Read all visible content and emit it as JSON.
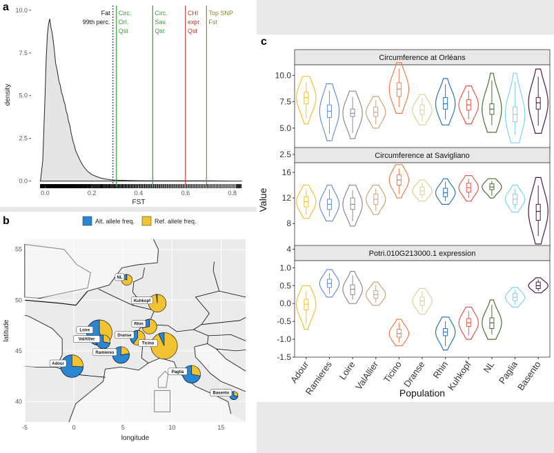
{
  "panels": {
    "a": "a",
    "b": "b",
    "c": "c"
  },
  "chart_data": [
    {
      "id": "a",
      "type": "area",
      "xlabel": "FST",
      "ylabel": "density",
      "xlim": [
        -0.06,
        0.86
      ],
      "ylim": [
        -0.3,
        10.4
      ],
      "xticks": [
        "0.0",
        "0.2",
        "0.4",
        "0.6",
        "0.8"
      ],
      "yticks": [
        "0.0",
        "2.5",
        "5.0",
        "7.5",
        "10.0"
      ],
      "x": [
        -0.02,
        -0.01,
        0.0,
        0.005,
        0.01,
        0.015,
        0.02,
        0.025,
        0.03,
        0.035,
        0.04,
        0.045,
        0.05,
        0.055,
        0.06,
        0.065,
        0.07,
        0.075,
        0.08,
        0.085,
        0.09,
        0.095,
        0.1,
        0.105,
        0.11,
        0.115,
        0.12,
        0.125,
        0.13,
        0.14,
        0.15,
        0.16,
        0.17,
        0.18,
        0.19,
        0.2,
        0.22,
        0.24,
        0.26,
        0.28,
        0.3,
        0.35,
        0.4,
        0.5,
        0.6,
        0.7,
        0.8,
        0.84
      ],
      "y": [
        0.0,
        1.2,
        5.0,
        7.2,
        8.6,
        9.2,
        9.5,
        9.0,
        8.7,
        8.2,
        7.6,
        6.9,
        6.6,
        6.2,
        5.8,
        5.6,
        5.2,
        5.0,
        4.7,
        4.5,
        4.1,
        3.9,
        3.5,
        3.3,
        2.9,
        2.6,
        2.3,
        2.1,
        1.8,
        1.5,
        1.2,
        0.95,
        0.75,
        0.6,
        0.48,
        0.38,
        0.26,
        0.17,
        0.11,
        0.07,
        0.05,
        0.03,
        0.02,
        0.01,
        0.01,
        0.01,
        0.0,
        0.0
      ],
      "vlines": [
        {
          "x": 0.29,
          "label": [
            "Fat",
            "99th perc."
          ],
          "color": "#333333",
          "style": "dotted",
          "side": "left"
        },
        {
          "x": 0.305,
          "label": [
            "Circ.",
            "Orl.",
            "Qst"
          ],
          "color": "#3a9a3a",
          "style": "solid",
          "side": "right"
        },
        {
          "x": 0.46,
          "label": [
            "Circ.",
            "Sav.",
            "Qst"
          ],
          "color": "#3a9a3a",
          "style": "solid",
          "side": "right"
        },
        {
          "x": 0.6,
          "label": [
            "CHI",
            "expr.",
            "Qst"
          ],
          "color": "#c0392b",
          "style": "solid",
          "side": "right"
        },
        {
          "x": 0.69,
          "label": [
            "Top SNP",
            "Fst"
          ],
          "color": "#8a8a2a",
          "style": "solid",
          "side": "right"
        }
      ]
    },
    {
      "id": "b",
      "type": "pie",
      "xlabel": "longitude",
      "ylabel": "latitude",
      "xlim": [
        -5,
        17.5
      ],
      "ylim": [
        38,
        56
      ],
      "xticks": [
        "-5",
        "0",
        "5",
        "10",
        "15"
      ],
      "yticks": [
        "40",
        "45",
        "50",
        "55"
      ],
      "legend": [
        "Alt. allele freq.",
        "Ref. allele freq."
      ],
      "legend_position": "top",
      "colors": {
        "alt": "#2a86d1",
        "ref": "#f1c232"
      },
      "pies": [
        {
          "name": "Adour",
          "lon": -0.2,
          "lat": 43.5,
          "r": 1.15,
          "alt": 0.74
        },
        {
          "name": "Loire",
          "lon": 2.6,
          "lat": 46.8,
          "r": 1.3,
          "alt": 0.58
        },
        {
          "name": "ValAllier",
          "lon": 3.0,
          "lat": 45.9,
          "r": 0.7,
          "alt": 0.72
        },
        {
          "name": "Ramieres",
          "lon": 4.8,
          "lat": 44.6,
          "r": 0.85,
          "alt": 0.78
        },
        {
          "name": "Dranse",
          "lon": 6.5,
          "lat": 46.3,
          "r": 0.75,
          "alt": 0.4
        },
        {
          "name": "Rhin",
          "lon": 7.7,
          "lat": 47.4,
          "r": 0.75,
          "alt": 0.28
        },
        {
          "name": "Ticino",
          "lon": 9.2,
          "lat": 45.5,
          "r": 1.35,
          "alt": 0.07
        },
        {
          "name": "Kuhkopf",
          "lon": 8.5,
          "lat": 49.7,
          "r": 0.9,
          "alt": 0.02
        },
        {
          "name": "NL",
          "lon": 5.4,
          "lat": 52.0,
          "r": 0.55,
          "alt": 0.22
        },
        {
          "name": "Paglia",
          "lon": 12.0,
          "lat": 42.7,
          "r": 0.9,
          "alt": 0.72
        },
        {
          "name": "Basento",
          "lon": 16.3,
          "lat": 40.6,
          "r": 0.42,
          "alt": 0.72
        }
      ]
    },
    {
      "id": "c",
      "type": "violin",
      "xlabel": "Population",
      "ylabel": "Value",
      "categories": [
        "Adour",
        "Ramieres",
        "Loire",
        "ValAllier",
        "Ticino",
        "Dranse",
        "Rhin",
        "Kuhkopf",
        "NL",
        "Paglia",
        "Basento"
      ],
      "colors": [
        "#f1c232",
        "#6a8fd6",
        "#8c8c8c",
        "#c9a479",
        "#ef7c4a",
        "#d6d495",
        "#2a73b8",
        "#e4574e",
        "#4a6e2f",
        "#7ed3ef",
        "#4a1942"
      ],
      "facets": [
        {
          "title": "Circumference at Orléans",
          "ylim": [
            2.5,
            11.0
          ],
          "yticks": [
            "2.5",
            "5.0",
            "7.5",
            "10.0"
          ],
          "medians": [
            7.9,
            6.6,
            6.4,
            6.5,
            8.7,
            6.7,
            7.3,
            7.2,
            6.8,
            6.3,
            7.4
          ],
          "q1": [
            7.3,
            6.0,
            6.1,
            6.1,
            8.0,
            6.3,
            6.8,
            6.7,
            6.3,
            5.6,
            6.8
          ],
          "q3": [
            8.4,
            7.2,
            6.8,
            7.0,
            9.3,
            7.2,
            7.9,
            7.7,
            7.3,
            7.0,
            7.9
          ],
          "min": [
            5.4,
            3.8,
            4.0,
            5.0,
            6.4,
            5.3,
            5.3,
            5.4,
            4.6,
            3.6,
            4.5
          ],
          "max": [
            9.9,
            9.2,
            8.5,
            8.0,
            11.2,
            8.2,
            9.7,
            9.0,
            10.2,
            10.2,
            10.6
          ]
        },
        {
          "title": "Circumference at Savigliano",
          "ylim": [
            3.5,
            17.5
          ],
          "yticks": [
            "4",
            "8",
            "12",
            "16"
          ],
          "medians": [
            11.4,
            11.0,
            11.0,
            11.8,
            14.8,
            13.1,
            12.8,
            13.6,
            13.7,
            11.8,
            9.9
          ],
          "q1": [
            10.6,
            10.2,
            10.2,
            11.0,
            14.0,
            12.5,
            12.2,
            12.9,
            13.3,
            11.0,
            8.5
          ],
          "q3": [
            12.2,
            11.8,
            12.0,
            12.6,
            15.6,
            13.7,
            13.5,
            14.3,
            14.2,
            12.6,
            11.0
          ],
          "min": [
            8.8,
            8.4,
            7.6,
            9.4,
            12.0,
            11.5,
            11.0,
            11.5,
            12.0,
            9.8,
            4.8
          ],
          "max": [
            14.0,
            14.0,
            14.0,
            14.0,
            17.2,
            14.8,
            15.0,
            15.5,
            15.0,
            14.0,
            15.2
          ]
        },
        {
          "title": "Potri.010G213000.1 expression",
          "ylim": [
            -1.5,
            1.2
          ],
          "yticks": [
            "1.0",
            "0.5",
            "0.0",
            "-0.5",
            "-1.0",
            "-1.5"
          ],
          "medians": [
            -0.02,
            0.56,
            0.4,
            0.25,
            -0.84,
            0.07,
            -0.8,
            -0.54,
            -0.54,
            0.17,
            0.5
          ],
          "q1": [
            -0.18,
            0.45,
            0.25,
            0.15,
            -0.94,
            -0.05,
            -0.9,
            -0.64,
            -0.7,
            0.08,
            0.42
          ],
          "q3": [
            0.12,
            0.68,
            0.52,
            0.36,
            -0.72,
            0.18,
            -0.7,
            -0.42,
            -0.4,
            0.28,
            0.6
          ],
          "min": [
            -0.72,
            0.18,
            0.0,
            -0.05,
            -1.18,
            -0.3,
            -1.3,
            -1.0,
            -1.0,
            -0.1,
            0.3
          ],
          "max": [
            0.5,
            0.95,
            0.9,
            0.6,
            -0.44,
            0.42,
            -0.38,
            -0.1,
            0.1,
            0.45,
            0.72
          ]
        }
      ]
    }
  ]
}
